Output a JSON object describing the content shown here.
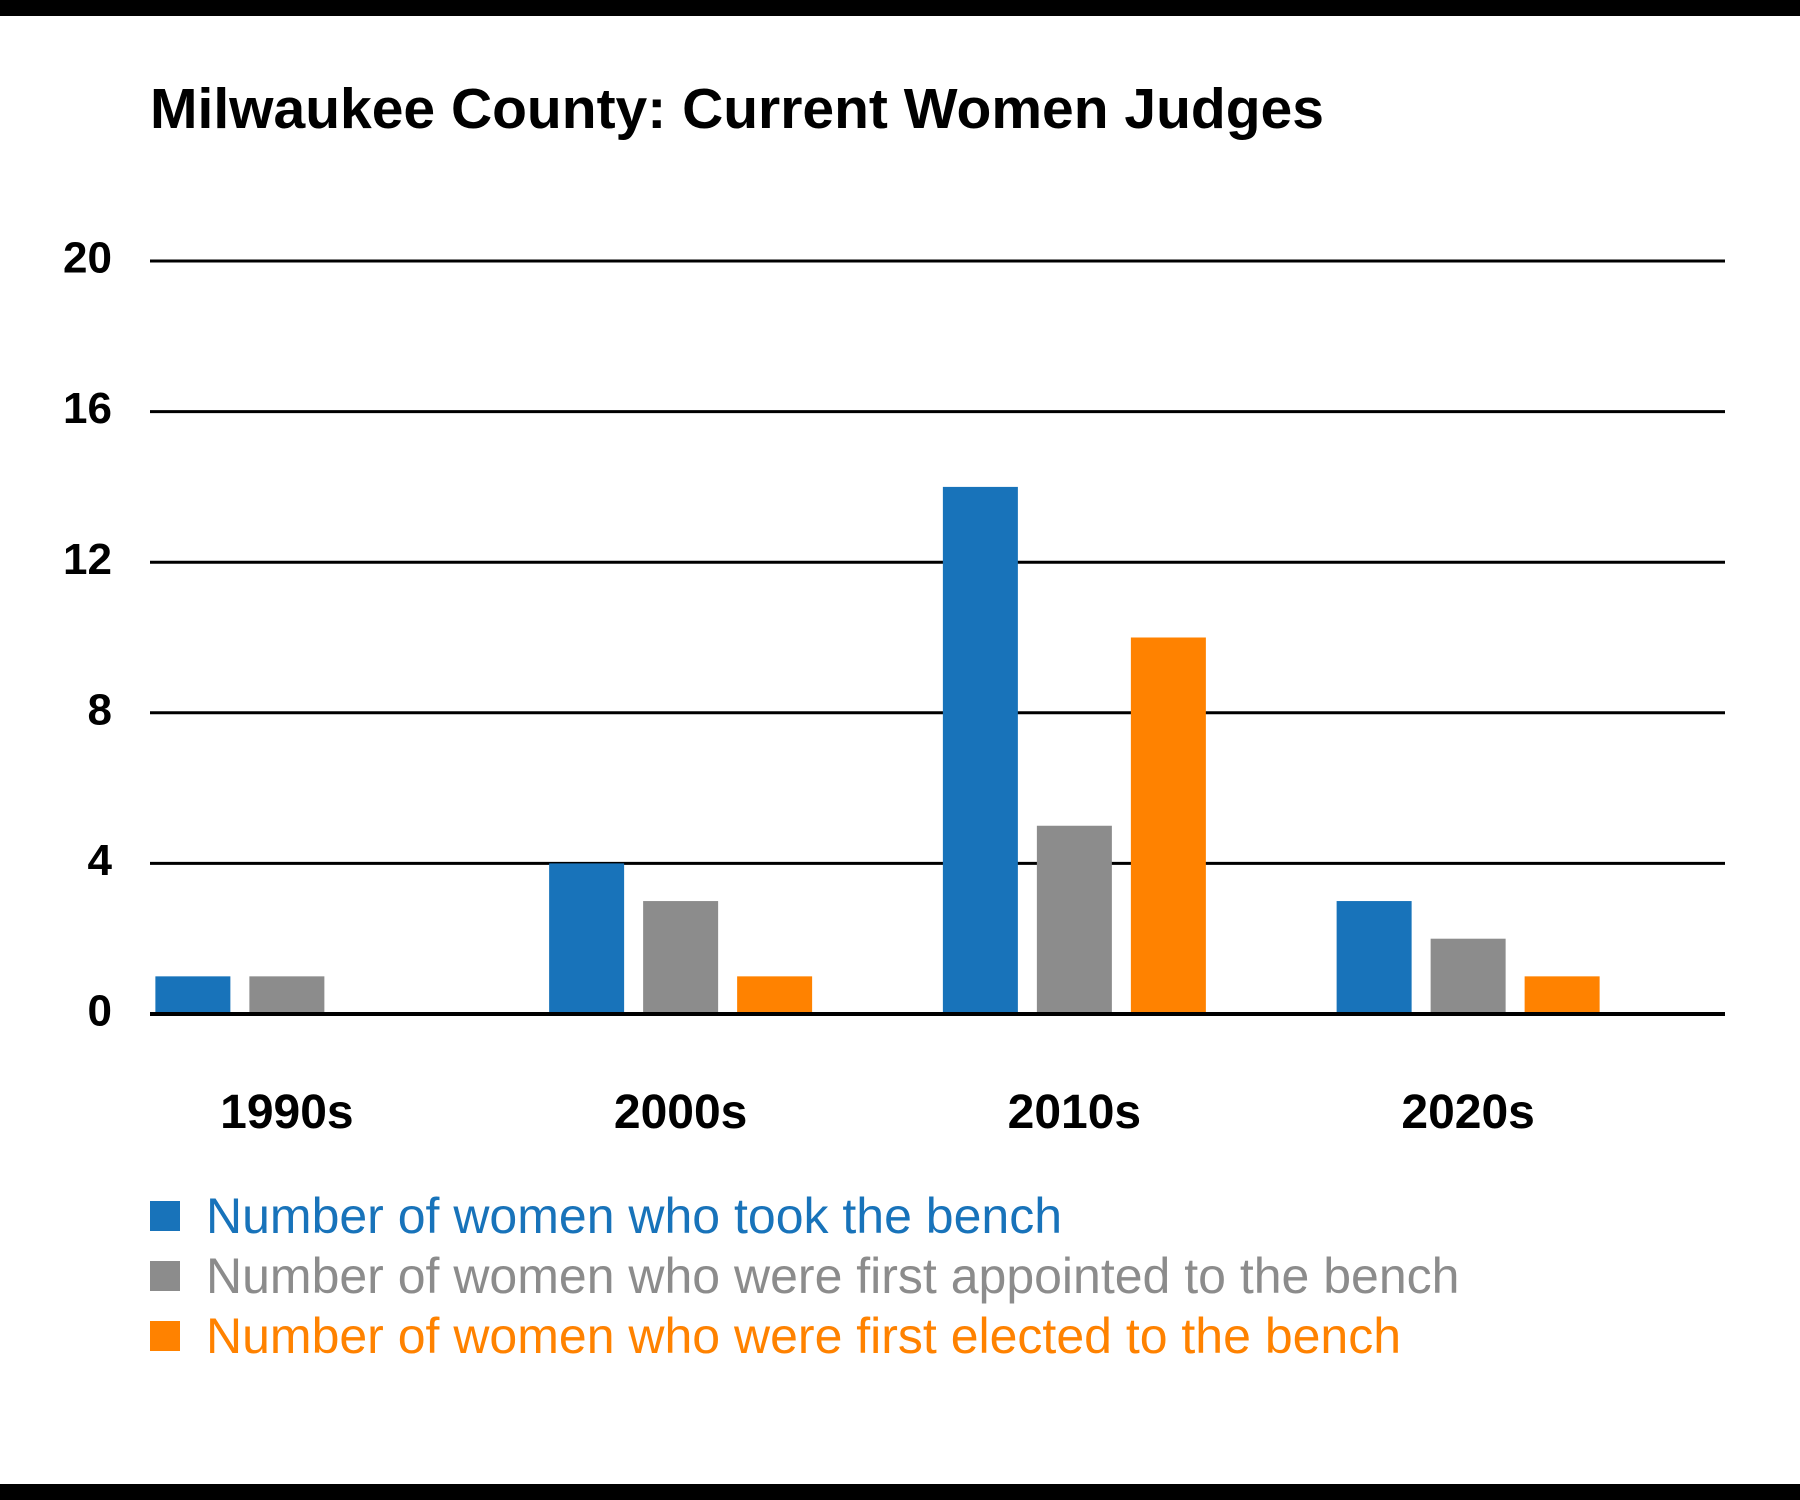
{
  "chart_data": {
    "type": "bar",
    "title": "Milwaukee County: Current Women Judges",
    "categories": [
      "1990s",
      "2000s",
      "2010s",
      "2020s"
    ],
    "series": [
      {
        "name": "Number of women who took the bench",
        "color": "#1873BA",
        "values": [
          1,
          4,
          14,
          3
        ]
      },
      {
        "name": "Number of women who were first appointed to the bench",
        "color": "#8C8C8C",
        "values": [
          1,
          3,
          5,
          2
        ]
      },
      {
        "name": "Number of women who were first elected to the bench",
        "color": "#FF8200",
        "values": [
          0,
          1,
          10,
          1
        ]
      }
    ],
    "yticks": [
      "0",
      "4",
      "8",
      "12",
      "16",
      "20"
    ],
    "ylim": [
      0,
      20
    ],
    "xlabel": "",
    "ylabel": "",
    "grid": true,
    "legend_position": "bottom-left"
  }
}
